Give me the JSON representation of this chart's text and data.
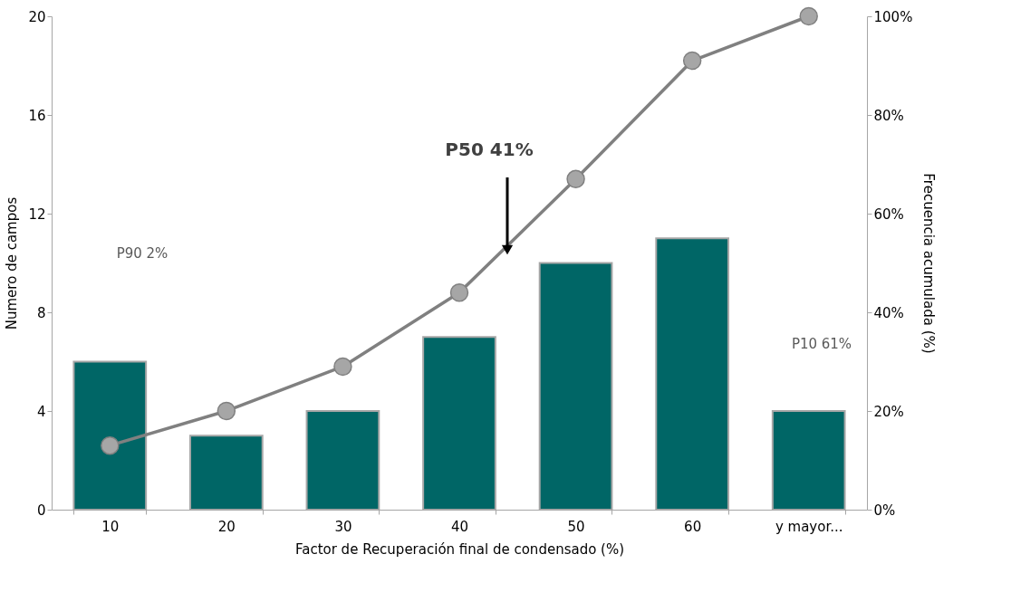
{
  "chart_data": {
    "type": "bar",
    "xlabel": "Factor de Recuperación final de condensado (%)",
    "ylabel": "Numero de campos",
    "y2label": "Frecuencia acumulada (%)",
    "categories": [
      "10",
      "20",
      "30",
      "40",
      "50",
      "60",
      "y mayor..."
    ],
    "series": [
      {
        "color": "#006666",
        "values": [
          6,
          3,
          4,
          7,
          10,
          11,
          4
        ]
      },
      {
        "type": "line",
        "axis": "y2",
        "color": "#808080",
        "marker": "circle",
        "values": [
          13,
          20,
          29,
          44,
          67,
          91,
          100
        ]
      }
    ],
    "ylim": [
      0,
      20
    ],
    "yticks": [
      0,
      4,
      8,
      12,
      16,
      20
    ],
    "y2lim": [
      0,
      100
    ],
    "y2ticks": [
      {
        "value": 0,
        "label": "0%"
      },
      {
        "value": 20,
        "label": "20%"
      },
      {
        "value": 40,
        "label": "40%"
      },
      {
        "value": 60,
        "label": "60%"
      },
      {
        "value": 80,
        "label": "80%"
      },
      {
        "value": 100,
        "label": "100%"
      }
    ],
    "annotations": [
      "P90 2%",
      "P50 41%",
      "P10 61%"
    ],
    "grid": false,
    "legend": false
  }
}
